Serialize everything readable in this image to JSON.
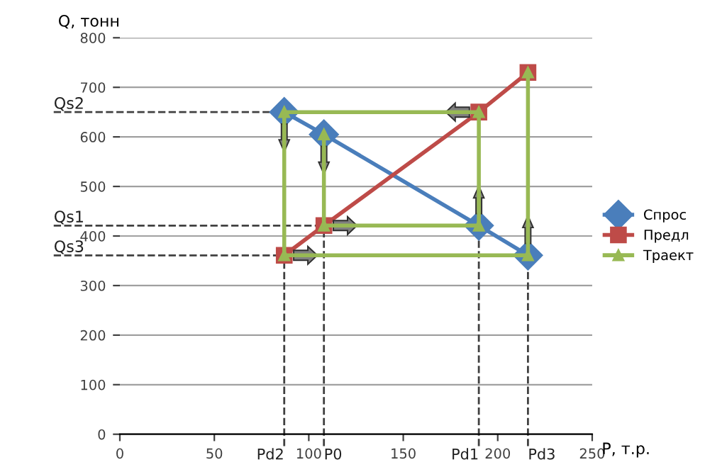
{
  "chart_data": {
    "type": "line",
    "xlabel": "P, т.р.",
    "ylabel": "Q, тонн",
    "series": [
      {
        "name": "Спрос",
        "color": "#4a7ebb",
        "marker": "diamond",
        "x": [
          87,
          108,
          190,
          216
        ],
        "values": [
          650,
          605,
          421,
          361
        ]
      },
      {
        "name": "Предл",
        "color": "#be4b48",
        "marker": "square",
        "x": [
          87,
          108,
          190,
          216
        ],
        "values": [
          361,
          421,
          650,
          730
        ]
      },
      {
        "name": "Траект",
        "color": "#98b954",
        "marker": "triangle",
        "x": [
          108,
          108,
          190,
          190,
          87,
          87,
          216,
          216
        ],
        "values": [
          605,
          421,
          421,
          650,
          650,
          361,
          361,
          730
        ]
      }
    ],
    "ref_lines": [
      {
        "axis": "y",
        "value": 650,
        "label": "Qs2",
        "line_style": "dashed",
        "color": "#404040"
      },
      {
        "axis": "y",
        "value": 421,
        "label": "Qs1",
        "line_style": "dashed",
        "color": "#404040"
      },
      {
        "axis": "y",
        "value": 361,
        "label": "Qs3",
        "line_style": "dashed",
        "color": "#404040"
      },
      {
        "axis": "x",
        "value": 87,
        "label": "Pd2",
        "line_style": "dashed",
        "color": "#404040"
      },
      {
        "axis": "x",
        "value": 108,
        "label": "P0",
        "line_style": "dashed",
        "color": "#404040"
      },
      {
        "axis": "x",
        "value": 190,
        "label": "Pd1",
        "line_style": "dashed",
        "color": "#404040"
      },
      {
        "axis": "x",
        "value": 216,
        "label": "Pd3",
        "line_style": "dashed",
        "color": "#404040"
      }
    ],
    "xlim": [
      0,
      250
    ],
    "xticks": [
      0,
      50,
      100,
      150,
      200,
      250
    ],
    "ylim": [
      0,
      800
    ],
    "yticks": [
      0,
      100,
      200,
      300,
      400,
      500,
      600,
      700,
      800
    ],
    "grid": "y",
    "legend": "right"
  }
}
